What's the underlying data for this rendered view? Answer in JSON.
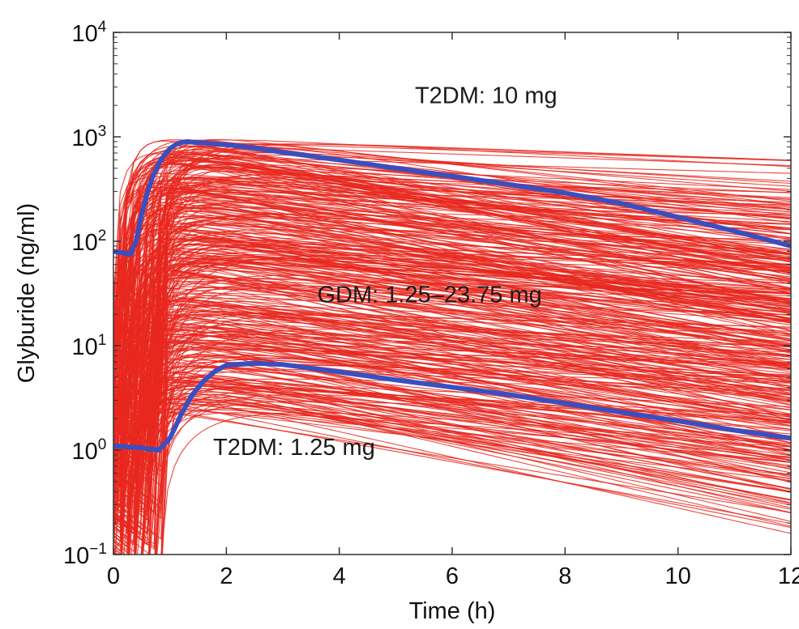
{
  "chart_data": {
    "type": "line",
    "xlabel": "Time (h)",
    "ylabel": "Glyburide (ng/ml)",
    "xlim": [
      0,
      12
    ],
    "ylim": [
      0.1,
      10000
    ],
    "y_scale": "log",
    "grid": false,
    "x_ticks": [
      {
        "value": 0,
        "label": "0"
      },
      {
        "value": 2,
        "label": "2"
      },
      {
        "value": 4,
        "label": "4"
      },
      {
        "value": 6,
        "label": "6"
      },
      {
        "value": 8,
        "label": "8"
      },
      {
        "value": 10,
        "label": "10"
      },
      {
        "value": 12,
        "label": "12"
      }
    ],
    "y_ticks": [
      {
        "value": 0.1,
        "base": "10",
        "exponent": "−1"
      },
      {
        "value": 1,
        "base": "10",
        "exponent": "0"
      },
      {
        "value": 10,
        "base": "10",
        "exponent": "1"
      },
      {
        "value": 100,
        "base": "10",
        "exponent": "2"
      },
      {
        "value": 1000,
        "base": "10",
        "exponent": "3"
      },
      {
        "value": 10000,
        "base": "10",
        "exponent": "4"
      }
    ],
    "annotations": [
      {
        "text": "T2DM: 10 mg",
        "x": 6.6,
        "y": 2100
      },
      {
        "text": "GDM: 1.25–23.75 mg",
        "x": 5.6,
        "y": 26
      },
      {
        "text": "T2DM: 1.25 mg",
        "x": 3.2,
        "y": 0.9
      }
    ],
    "series": [
      {
        "label": "T2DM: 10 mg",
        "color": "#3a4fbf",
        "x": [
          0,
          0.3,
          0.4,
          0.5,
          0.6,
          0.7,
          0.8,
          0.9,
          1.0,
          1.1,
          1.2,
          1.3,
          1.5,
          2.0,
          2.5,
          3.0,
          4.0,
          5.0,
          6.0,
          7.0,
          8.0,
          9.0,
          10.0,
          11.0,
          12.0
        ],
        "y": [
          80,
          75,
          100,
          180,
          290,
          420,
          550,
          670,
          770,
          840,
          880,
          900,
          880,
          840,
          780,
          710,
          600,
          500,
          420,
          350,
          290,
          230,
          170,
          125,
          90
        ]
      },
      {
        "label": "T2DM: 1.25 mg",
        "color": "#3a4fbf",
        "x": [
          0,
          0.5,
          0.8,
          1.0,
          1.2,
          1.4,
          1.6,
          1.8,
          2.0,
          2.5,
          3.0,
          4.0,
          5.0,
          6.0,
          7.0,
          8.0,
          9.0,
          10.0,
          11.0,
          12.0
        ],
        "y": [
          1.1,
          1.05,
          1.0,
          1.3,
          2.2,
          3.4,
          4.6,
          5.7,
          6.5,
          6.8,
          6.6,
          5.6,
          4.7,
          4.0,
          3.4,
          2.8,
          2.3,
          1.9,
          1.55,
          1.3
        ]
      }
    ],
    "simulated_profiles": {
      "label": "GDM: 1.25–23.75 mg",
      "color": "#e8281e",
      "count": 400,
      "pooled_x": [
        0,
        0.5,
        1.0,
        2.0,
        4.0,
        6.0,
        8.0,
        10.0,
        12.0
      ],
      "pooled_y_max": [
        200,
        600,
        1000,
        1100,
        800,
        500,
        330,
        230,
        200
      ],
      "pooled_y_min": [
        0.1,
        0.1,
        0.3,
        1.5,
        2.8,
        2.0,
        1.0,
        0.4,
        0.15
      ]
    }
  }
}
